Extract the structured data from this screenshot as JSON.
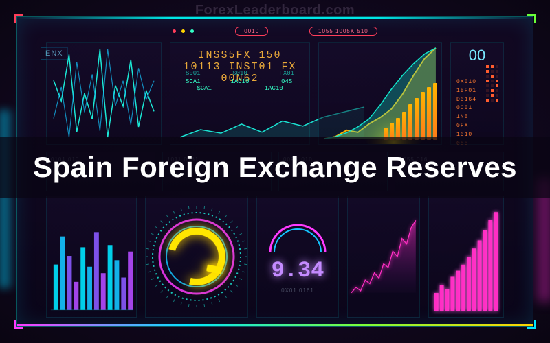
{
  "watermark": "ForexLeaderboard.com",
  "overlay_title": "Spain Foreign Exchange Reserves",
  "frame": {
    "corner_colors": {
      "tl": "#ff3d5a",
      "tr": "#6bff3a",
      "bl": "#ff3aff",
      "br": "#00e6ff"
    },
    "top_edge_color": "#00e6e6",
    "bottom_gradient": [
      "#ff3aff",
      "#00e6ff",
      "#7aff3a",
      "#ffd400"
    ]
  },
  "topbar": {
    "left_dots": [
      "#ff3d5a",
      "#ffd400",
      "#34ffc7"
    ],
    "pills": [
      "0010",
      "1055 1005K 510"
    ],
    "badge_left": "ENX"
  },
  "header_line": "INSS5FX 150 10113 INST01 FX 00N62",
  "header_color": "#e8a83a",
  "panel_left_top": {
    "type": "line",
    "series1": [
      60,
      52,
      70,
      40,
      55,
      45,
      72,
      38,
      58,
      50,
      68,
      42,
      56,
      48
    ],
    "series2": [
      40,
      50,
      34,
      58,
      42,
      54,
      36,
      62,
      44,
      52,
      38,
      56,
      46,
      52
    ],
    "colors": [
      "#1be8d6",
      "#14c4ff"
    ],
    "background": "#130a28"
  },
  "panel_mid_top": {
    "stats_row1": [
      {
        "label": "S901",
        "value": "SCA1"
      },
      {
        "label": "S010",
        "value": "1AC10"
      },
      {
        "label": "FX01",
        "value": "04S"
      }
    ],
    "stats_row2": [
      {
        "label": "$CA1",
        "value": ""
      },
      {
        "label": "1AC10",
        "value": ""
      }
    ],
    "mini_line": {
      "type": "line",
      "values": [
        20,
        35,
        28,
        46,
        30,
        52,
        42,
        60,
        70,
        80
      ],
      "color": "#1be8d6",
      "fill": "rgba(20,200,190,0.18)"
    }
  },
  "panel_right_top": {
    "area": {
      "type": "area",
      "series_a": [
        10,
        12,
        18,
        16,
        24,
        30,
        38,
        52,
        70,
        86,
        96
      ],
      "series_b": [
        2,
        4,
        8,
        14,
        22,
        36,
        52,
        66,
        78,
        88,
        94
      ],
      "color_a": "#ffb400",
      "color_b": "#12e6cc",
      "glow": "#ffe600"
    },
    "bars": {
      "type": "bar",
      "values": [
        20,
        28,
        36,
        46,
        58,
        68,
        78,
        86,
        92
      ],
      "color_top": "#ffb400",
      "color_bottom": "#ff7a1a"
    }
  },
  "right_sidebar": {
    "big_label": "00",
    "lines": [
      "0X010",
      "15F01",
      "D0164",
      "0C01",
      "1N5",
      "0FX",
      "1010",
      "055"
    ],
    "dot_grid_color": "#ff5c2e",
    "text_color": "#ff7a2e"
  },
  "row2_cells": [
    {
      "tiny": "0101 010"
    },
    {
      "tiny": "1011 0161"
    },
    {
      "tiny": "00FX 010"
    },
    {
      "tiny": "1055 016"
    }
  ],
  "panel_bl": {
    "type": "bar",
    "values": [
      42,
      68,
      50,
      26,
      58,
      40,
      72,
      34,
      60,
      46,
      30,
      54
    ],
    "colors": [
      "#00e6ff",
      "#14c4ff",
      "#8a5aff",
      "#b44bff"
    ],
    "axis_color": "rgba(0,220,220,0.25)"
  },
  "panel_gauge": {
    "type": "gauge",
    "rings": [
      {
        "r": 64,
        "stroke": "#1be8d6",
        "w": 2,
        "dash": "2 4"
      },
      {
        "r": 54,
        "stroke": "#ff3aff",
        "w": 3
      },
      {
        "r": 44,
        "stroke": "#14c4ff",
        "w": 2
      }
    ],
    "q_color": "#ffe600",
    "ticks_color": "#1be8d6"
  },
  "panel_number": {
    "value": "9.34",
    "color": "#c48bff",
    "subtext": "0X01 0161",
    "arc_colors": [
      "#ff3aff",
      "#14c4ff"
    ]
  },
  "panel_br_area": {
    "type": "area",
    "values": [
      12,
      18,
      14,
      26,
      22,
      34,
      28,
      44,
      40,
      58,
      52,
      72,
      66,
      84,
      92
    ],
    "line_color": "#ff2ec4",
    "fill_from": "rgba(255,46,196,0.55)",
    "fill_to": "rgba(90,20,120,0.05)"
  },
  "panel_br_bars": {
    "type": "bar",
    "values": [
      18,
      26,
      22,
      34,
      40,
      46,
      54,
      62,
      70,
      80,
      90,
      98
    ],
    "color": "#ff2ec4",
    "glow": "#ff5ae0"
  },
  "background_color": "#0a0512"
}
